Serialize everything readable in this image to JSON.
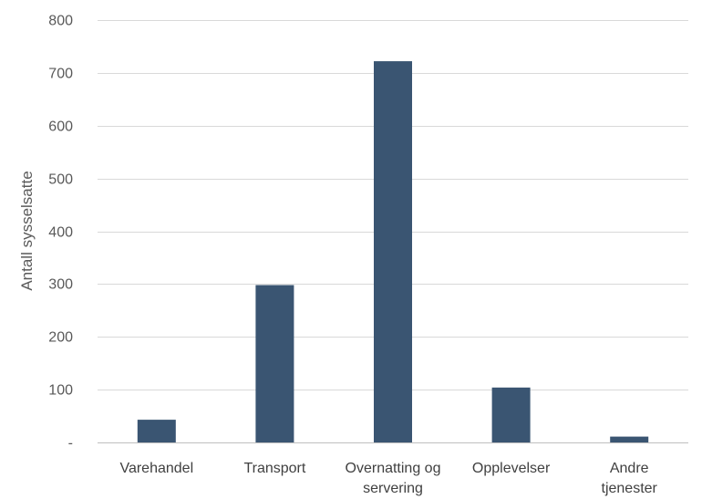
{
  "chart_data": {
    "type": "bar",
    "title": "",
    "xlabel": "",
    "ylabel": "Antall sysselsatte",
    "categories": [
      [
        "Varehandel"
      ],
      [
        "Transport"
      ],
      [
        "Overnatting og",
        "servering"
      ],
      [
        "Opplevelser"
      ],
      [
        "Andre",
        "tjenester"
      ]
    ],
    "values": [
      43,
      298,
      722,
      104,
      11
    ],
    "ylim": [
      0,
      800
    ],
    "yticks": [
      0,
      100,
      200,
      300,
      400,
      500,
      600,
      700,
      800
    ],
    "ytick_labels": [
      "-",
      "100",
      "200",
      "300",
      "400",
      "500",
      "600",
      "700",
      "800"
    ],
    "grid": true,
    "bar_color": "#3a5572",
    "grid_color": "#d9d9d9"
  }
}
